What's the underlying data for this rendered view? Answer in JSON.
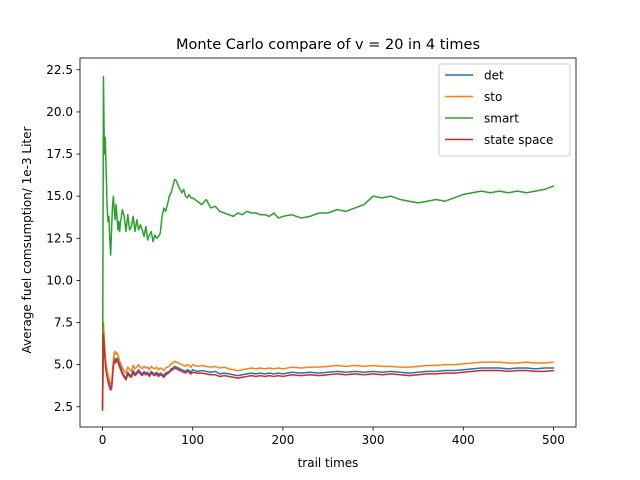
{
  "chart_data": {
    "type": "line",
    "title": "Monte Carlo compare of v = 20 in 4 times",
    "xlabel": "trail times",
    "ylabel": "Average fuel comsumption/ 1e-3 Liter",
    "xlim": [
      -25,
      525
    ],
    "ylim": [
      1.3,
      23.2
    ],
    "xticks": [
      0,
      100,
      200,
      300,
      400,
      500
    ],
    "xtick_labels": [
      "0",
      "100",
      "200",
      "300",
      "400",
      "500"
    ],
    "yticks": [
      2.5,
      5.0,
      7.5,
      10.0,
      12.5,
      15.0,
      17.5,
      20.0,
      22.5
    ],
    "ytick_labels": [
      "2.5",
      "5.0",
      "7.5",
      "10.0",
      "12.5",
      "15.0",
      "17.5",
      "20.0",
      "22.5"
    ],
    "grid": false,
    "legend_position": "upper right",
    "series": [
      {
        "name": "det",
        "color": "#1f77b4",
        "x": [
          0,
          1,
          2,
          3,
          4,
          5,
          6,
          7,
          8,
          9,
          10,
          11,
          12,
          13,
          14,
          15,
          16,
          17,
          18,
          19,
          20,
          22,
          24,
          26,
          28,
          30,
          32,
          34,
          36,
          38,
          40,
          42,
          44,
          46,
          48,
          50,
          52,
          54,
          56,
          58,
          60,
          62,
          64,
          66,
          68,
          70,
          72,
          74,
          76,
          78,
          80,
          82,
          84,
          86,
          88,
          90,
          92,
          94,
          96,
          98,
          100,
          105,
          110,
          115,
          120,
          125,
          130,
          135,
          140,
          145,
          150,
          155,
          160,
          165,
          170,
          175,
          180,
          185,
          190,
          195,
          200,
          210,
          220,
          230,
          240,
          250,
          260,
          270,
          280,
          290,
          300,
          310,
          320,
          330,
          340,
          350,
          360,
          370,
          380,
          390,
          400,
          410,
          420,
          430,
          440,
          450,
          460,
          470,
          480,
          490,
          500
        ],
        "y": [
          2.5,
          6.9,
          6.2,
          5.3,
          4.8,
          4.5,
          4.2,
          4.0,
          3.8,
          3.7,
          3.65,
          4.3,
          5.1,
          5.4,
          5.2,
          5.3,
          5.4,
          5.3,
          5.15,
          5.0,
          4.85,
          4.55,
          4.35,
          4.2,
          4.55,
          4.4,
          4.35,
          4.65,
          4.45,
          4.55,
          4.7,
          4.55,
          4.45,
          4.6,
          4.5,
          4.55,
          4.4,
          4.6,
          4.5,
          4.45,
          4.55,
          4.4,
          4.5,
          4.45,
          4.35,
          4.5,
          4.55,
          4.6,
          4.75,
          4.8,
          4.9,
          4.85,
          4.8,
          4.75,
          4.7,
          4.65,
          4.6,
          4.7,
          4.65,
          4.55,
          4.7,
          4.6,
          4.65,
          4.6,
          4.55,
          4.6,
          4.45,
          4.5,
          4.45,
          4.4,
          4.35,
          4.4,
          4.45,
          4.5,
          4.45,
          4.5,
          4.45,
          4.5,
          4.45,
          4.5,
          4.45,
          4.55,
          4.5,
          4.55,
          4.5,
          4.55,
          4.6,
          4.55,
          4.6,
          4.55,
          4.6,
          4.55,
          4.6,
          4.55,
          4.5,
          4.55,
          4.6,
          4.6,
          4.65,
          4.65,
          4.7,
          4.75,
          4.8,
          4.8,
          4.8,
          4.75,
          4.8,
          4.8,
          4.75,
          4.8,
          4.8
        ]
      },
      {
        "name": "sto",
        "color": "#ff7f0e",
        "x": [
          0,
          1,
          2,
          3,
          4,
          5,
          6,
          7,
          8,
          9,
          10,
          11,
          12,
          13,
          14,
          15,
          16,
          17,
          18,
          19,
          20,
          22,
          24,
          26,
          28,
          30,
          32,
          34,
          36,
          38,
          40,
          42,
          44,
          46,
          48,
          50,
          52,
          54,
          56,
          58,
          60,
          62,
          64,
          66,
          68,
          70,
          72,
          74,
          76,
          78,
          80,
          82,
          84,
          86,
          88,
          90,
          92,
          94,
          96,
          98,
          100,
          105,
          110,
          115,
          120,
          125,
          130,
          135,
          140,
          145,
          150,
          155,
          160,
          165,
          170,
          175,
          180,
          185,
          190,
          195,
          200,
          210,
          220,
          230,
          240,
          250,
          260,
          270,
          280,
          290,
          300,
          310,
          320,
          330,
          340,
          350,
          360,
          370,
          380,
          390,
          400,
          410,
          420,
          430,
          440,
          450,
          460,
          470,
          480,
          490,
          500
        ],
        "y": [
          2.6,
          7.5,
          6.4,
          5.5,
          5.0,
          4.7,
          4.4,
          4.2,
          4.0,
          3.9,
          3.85,
          4.6,
          5.3,
          5.7,
          5.8,
          5.6,
          5.7,
          5.6,
          5.4,
          5.2,
          5.1,
          4.8,
          4.6,
          4.5,
          4.85,
          4.7,
          4.6,
          4.95,
          4.75,
          4.85,
          5.0,
          4.85,
          4.75,
          4.9,
          4.8,
          4.85,
          4.7,
          4.9,
          4.8,
          4.75,
          4.85,
          4.7,
          4.8,
          4.75,
          4.65,
          4.8,
          4.85,
          4.9,
          5.05,
          5.1,
          5.2,
          5.15,
          5.1,
          5.05,
          5.0,
          4.95,
          4.9,
          5.0,
          4.95,
          4.85,
          5.0,
          4.9,
          4.95,
          4.9,
          4.85,
          4.9,
          4.8,
          4.85,
          4.75,
          4.7,
          4.65,
          4.7,
          4.75,
          4.8,
          4.75,
          4.8,
          4.75,
          4.8,
          4.75,
          4.8,
          4.75,
          4.85,
          4.8,
          4.85,
          4.85,
          4.9,
          4.95,
          4.9,
          4.95,
          4.9,
          4.95,
          4.9,
          4.9,
          4.85,
          4.85,
          4.9,
          4.95,
          4.95,
          5.0,
          5.0,
          5.05,
          5.1,
          5.15,
          5.15,
          5.15,
          5.1,
          5.1,
          5.15,
          5.1,
          5.1,
          5.15
        ]
      },
      {
        "name": "smart",
        "color": "#2ca02c",
        "x": [
          0,
          1,
          2,
          3,
          4,
          5,
          6,
          7,
          8,
          9,
          10,
          11,
          12,
          13,
          14,
          15,
          16,
          17,
          18,
          19,
          20,
          22,
          24,
          26,
          28,
          30,
          32,
          34,
          36,
          38,
          40,
          42,
          44,
          46,
          48,
          50,
          52,
          54,
          56,
          58,
          60,
          62,
          64,
          66,
          68,
          70,
          72,
          74,
          76,
          78,
          80,
          82,
          84,
          86,
          88,
          90,
          92,
          94,
          96,
          98,
          100,
          105,
          110,
          115,
          120,
          125,
          130,
          135,
          140,
          145,
          150,
          155,
          160,
          165,
          170,
          175,
          180,
          185,
          190,
          195,
          200,
          210,
          220,
          230,
          240,
          250,
          260,
          270,
          280,
          290,
          300,
          310,
          320,
          330,
          340,
          350,
          360,
          370,
          380,
          390,
          400,
          410,
          420,
          430,
          440,
          450,
          460,
          470,
          480,
          490,
          500
        ],
        "y": [
          2.4,
          22.1,
          17.5,
          18.5,
          16.5,
          14.5,
          13.5,
          13.8,
          12.5,
          11.5,
          13.0,
          14.4,
          15.0,
          14.2,
          13.6,
          14.5,
          13.8,
          13.0,
          13.5,
          12.9,
          13.5,
          14.2,
          13.8,
          12.9,
          13.9,
          13.0,
          13.2,
          13.8,
          12.9,
          13.6,
          13.0,
          13.3,
          13.0,
          12.6,
          13.2,
          12.4,
          12.7,
          12.9,
          12.3,
          12.7,
          12.5,
          12.6,
          12.8,
          13.8,
          14.3,
          14.1,
          14.5,
          15.0,
          15.2,
          15.6,
          16.0,
          15.9,
          15.6,
          15.4,
          15.2,
          15.4,
          15.0,
          14.9,
          15.1,
          14.9,
          14.9,
          14.7,
          14.5,
          14.8,
          14.3,
          14.4,
          14.1,
          14.0,
          13.9,
          13.8,
          14.0,
          13.9,
          14.1,
          14.0,
          14.0,
          13.9,
          13.9,
          13.8,
          14.0,
          13.7,
          13.8,
          13.9,
          13.7,
          13.8,
          14.0,
          14.0,
          14.2,
          14.1,
          14.3,
          14.5,
          15.0,
          14.9,
          15.0,
          14.8,
          14.7,
          14.6,
          14.7,
          14.8,
          14.7,
          14.9,
          15.1,
          15.2,
          15.3,
          15.2,
          15.3,
          15.2,
          15.3,
          15.2,
          15.3,
          15.4,
          15.6
        ]
      },
      {
        "name": "state space",
        "color": "#d62728",
        "x": [
          0,
          1,
          2,
          3,
          4,
          5,
          6,
          7,
          8,
          9,
          10,
          11,
          12,
          13,
          14,
          15,
          16,
          17,
          18,
          19,
          20,
          22,
          24,
          26,
          28,
          30,
          32,
          34,
          36,
          38,
          40,
          42,
          44,
          46,
          48,
          50,
          52,
          54,
          56,
          58,
          60,
          62,
          64,
          66,
          68,
          70,
          72,
          74,
          76,
          78,
          80,
          82,
          84,
          86,
          88,
          90,
          92,
          94,
          96,
          98,
          100,
          105,
          110,
          115,
          120,
          125,
          130,
          135,
          140,
          145,
          150,
          155,
          160,
          165,
          170,
          175,
          180,
          185,
          190,
          195,
          200,
          210,
          220,
          230,
          240,
          250,
          260,
          270,
          280,
          290,
          300,
          310,
          320,
          330,
          340,
          350,
          360,
          370,
          380,
          390,
          400,
          410,
          420,
          430,
          440,
          450,
          460,
          470,
          480,
          490,
          500
        ],
        "y": [
          2.3,
          6.8,
          5.9,
          5.1,
          4.6,
          4.3,
          4.0,
          3.8,
          3.6,
          3.5,
          3.55,
          4.2,
          4.9,
          5.2,
          5.1,
          5.2,
          5.25,
          5.15,
          5.0,
          4.85,
          4.7,
          4.45,
          4.25,
          4.1,
          4.45,
          4.3,
          4.25,
          4.55,
          4.35,
          4.45,
          4.6,
          4.45,
          4.35,
          4.5,
          4.4,
          4.45,
          4.3,
          4.5,
          4.4,
          4.35,
          4.45,
          4.3,
          4.4,
          4.35,
          4.25,
          4.4,
          4.45,
          4.55,
          4.65,
          4.7,
          4.8,
          4.75,
          4.7,
          4.65,
          4.6,
          4.55,
          4.5,
          4.6,
          4.55,
          4.45,
          4.55,
          4.5,
          4.5,
          4.45,
          4.4,
          4.4,
          4.3,
          4.35,
          4.3,
          4.25,
          4.2,
          4.25,
          4.3,
          4.35,
          4.3,
          4.35,
          4.3,
          4.35,
          4.3,
          4.35,
          4.3,
          4.4,
          4.35,
          4.4,
          4.35,
          4.4,
          4.45,
          4.4,
          4.45,
          4.4,
          4.45,
          4.4,
          4.45,
          4.4,
          4.35,
          4.4,
          4.45,
          4.45,
          4.5,
          4.5,
          4.55,
          4.6,
          4.65,
          4.65,
          4.65,
          4.6,
          4.65,
          4.65,
          4.6,
          4.6,
          4.65
        ]
      }
    ]
  }
}
